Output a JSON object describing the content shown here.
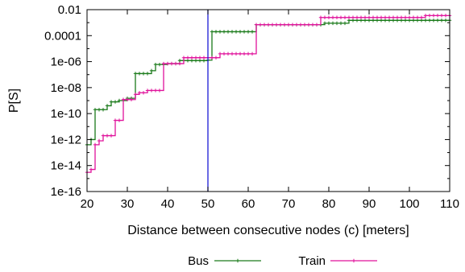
{
  "chart_data": {
    "type": "line",
    "title": "",
    "xlabel": "Distance between consecutive nodes (c) [meters]",
    "ylabel": "P[S]",
    "x_range": [
      20,
      110
    ],
    "y_range": [
      1e-16,
      0.01
    ],
    "y_scale": "log",
    "grid": false,
    "legend_position": "bottom-center",
    "x_ticks": [
      "20",
      "30",
      "40",
      "50",
      "60",
      "70",
      "80",
      "90",
      "100",
      "110"
    ],
    "y_ticks": [
      {
        "value": 0.01,
        "label": "0.01"
      },
      {
        "value": 0.0001,
        "label": "0.0001"
      },
      {
        "value": 1e-06,
        "label": "1e-06"
      },
      {
        "value": 1e-08,
        "label": "1e-08"
      },
      {
        "value": 1e-10,
        "label": "1e-10"
      },
      {
        "value": 1e-12,
        "label": "1e-12"
      },
      {
        "value": 1e-14,
        "label": "1e-14"
      },
      {
        "value": 1e-16,
        "label": "1e-16"
      }
    ],
    "vertical_line": {
      "x": 50,
      "color": "#1a1ad6"
    },
    "series": [
      {
        "name": "Bus",
        "color": "#1a7a1a",
        "steps": [
          {
            "x_start": 20,
            "x_end": 21,
            "y": 4e-13
          },
          {
            "x_start": 21,
            "x_end": 22,
            "y": 1e-12
          },
          {
            "x_start": 22,
            "x_end": 25,
            "y": 2e-10
          },
          {
            "x_start": 25,
            "x_end": 26,
            "y": 4e-10
          },
          {
            "x_start": 26,
            "x_end": 28,
            "y": 8e-10
          },
          {
            "x_start": 28,
            "x_end": 30,
            "y": 1e-09
          },
          {
            "x_start": 30,
            "x_end": 32,
            "y": 1.5e-09
          },
          {
            "x_start": 32,
            "x_end": 36,
            "y": 1.2e-07
          },
          {
            "x_start": 36,
            "x_end": 37,
            "y": 2e-07
          },
          {
            "x_start": 37,
            "x_end": 40,
            "y": 6e-07
          },
          {
            "x_start": 40,
            "x_end": 43,
            "y": 7e-07
          },
          {
            "x_start": 43,
            "x_end": 50,
            "y": 1.2e-06
          },
          {
            "x_start": 50,
            "x_end": 51,
            "y": 1.3e-06
          },
          {
            "x_start": 51,
            "x_end": 62,
            "y": 0.0002
          },
          {
            "x_start": 62,
            "x_end": 79,
            "y": 0.0007
          },
          {
            "x_start": 79,
            "x_end": 85,
            "y": 0.0009
          },
          {
            "x_start": 85,
            "x_end": 110,
            "y": 0.0015
          }
        ]
      },
      {
        "name": "Train",
        "color": "#e0129b",
        "steps": [
          {
            "x_start": 20,
            "x_end": 21,
            "y": 3e-15
          },
          {
            "x_start": 21,
            "x_end": 22,
            "y": 5e-15
          },
          {
            "x_start": 22,
            "x_end": 23,
            "y": 4e-13
          },
          {
            "x_start": 23,
            "x_end": 24,
            "y": 8e-13
          },
          {
            "x_start": 24,
            "x_end": 27,
            "y": 2e-12
          },
          {
            "x_start": 27,
            "x_end": 29,
            "y": 3e-11
          },
          {
            "x_start": 29,
            "x_end": 32,
            "y": 1.2e-09
          },
          {
            "x_start": 32,
            "x_end": 33,
            "y": 3e-09
          },
          {
            "x_start": 33,
            "x_end": 35,
            "y": 4e-09
          },
          {
            "x_start": 35,
            "x_end": 39,
            "y": 6e-09
          },
          {
            "x_start": 39,
            "x_end": 44,
            "y": 7e-07
          },
          {
            "x_start": 44,
            "x_end": 53,
            "y": 2e-06
          },
          {
            "x_start": 53,
            "x_end": 62,
            "y": 4e-06
          },
          {
            "x_start": 62,
            "x_end": 78,
            "y": 0.0007
          },
          {
            "x_start": 78,
            "x_end": 104,
            "y": 0.0025
          },
          {
            "x_start": 104,
            "x_end": 110,
            "y": 0.0035
          }
        ]
      }
    ]
  }
}
